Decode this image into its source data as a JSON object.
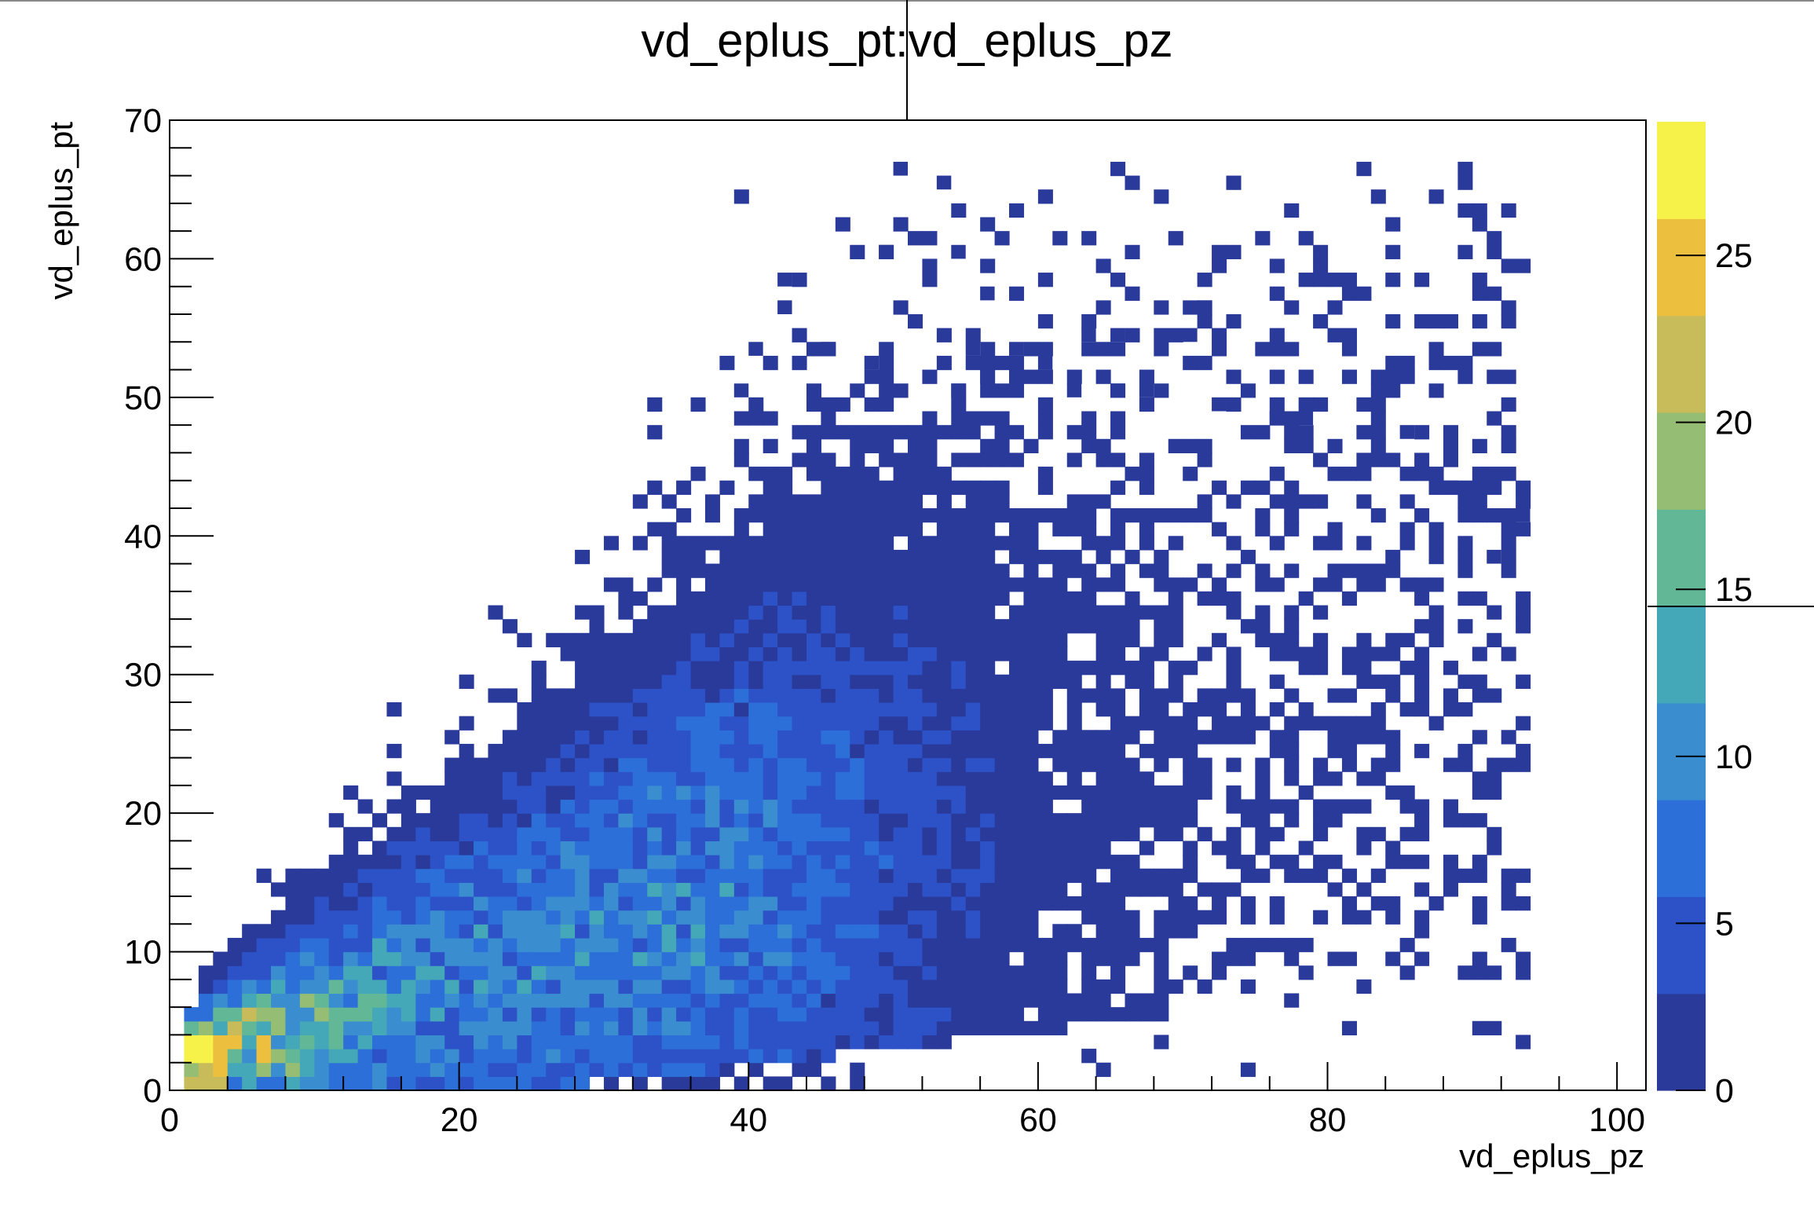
{
  "chart_data": {
    "type": "heatmap",
    "title": "vd_eplus_pt:vd_eplus_pz",
    "xlabel": "vd_eplus_pz",
    "ylabel": "vd_eplus_pt",
    "xlim": [
      0,
      102
    ],
    "ylim": [
      0,
      70
    ],
    "x_ticks": [
      "0",
      "20",
      "40",
      "60",
      "80",
      "100"
    ],
    "y_ticks": [
      "0",
      "10",
      "20",
      "30",
      "40",
      "50",
      "60",
      "70"
    ],
    "z_ticks": [
      "0",
      "5",
      "10",
      "15",
      "20",
      "25"
    ],
    "zlim": [
      0,
      29
    ],
    "bins": {
      "nx": 102,
      "ny": 70
    },
    "palette": "viridis-like blue-to-yellow",
    "palette_colors": [
      "#2a3a9a",
      "#2d52c8",
      "#2d6fd8",
      "#3a8ed0",
      "#45a8b8",
      "#62b896",
      "#96bd74",
      "#c8bb5a",
      "#ecbf3e",
      "#f6f24a"
    ],
    "density_model": {
      "description": "approximate counts per (pz, pt) bin",
      "ridge_slope": 0.32,
      "peak_count": 27,
      "max_pz": 94,
      "max_pt": 67
    },
    "outlier_points": [
      [
        50.5,
        66.5
      ],
      [
        53,
        65
      ],
      [
        49.5,
        60
      ],
      [
        54.5,
        60
      ],
      [
        42.5,
        58
      ],
      [
        56.5,
        57
      ],
      [
        42.5,
        56.5
      ],
      [
        71.5,
        56.5
      ],
      [
        63,
        54.5
      ],
      [
        65,
        54.5
      ],
      [
        70,
        54.5
      ],
      [
        45.5,
        53.5
      ],
      [
        40,
        53
      ],
      [
        55.5,
        53
      ],
      [
        58,
        53
      ],
      [
        48,
        52
      ],
      [
        60.5,
        52
      ],
      [
        54.5,
        50.5
      ],
      [
        56,
        51
      ],
      [
        58.5,
        50.5
      ],
      [
        39,
        50
      ],
      [
        62.5,
        50
      ],
      [
        65,
        50
      ],
      [
        67,
        50
      ],
      [
        72,
        49.5
      ],
      [
        76.5,
        48
      ],
      [
        78.5,
        48
      ],
      [
        85,
        47
      ],
      [
        88,
        43
      ],
      [
        93,
        41
      ],
      [
        91,
        38
      ]
    ]
  }
}
